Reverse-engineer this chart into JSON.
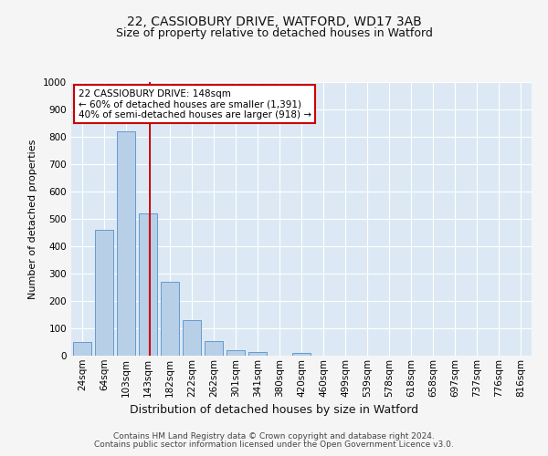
{
  "title": "22, CASSIOBURY DRIVE, WATFORD, WD17 3AB",
  "subtitle": "Size of property relative to detached houses in Watford",
  "xlabel": "Distribution of detached houses by size in Watford",
  "ylabel": "Number of detached properties",
  "footer_line1": "Contains HM Land Registry data © Crown copyright and database right 2024.",
  "footer_line2": "Contains public sector information licensed under the Open Government Licence v3.0.",
  "categories": [
    "24sqm",
    "64sqm",
    "103sqm",
    "143sqm",
    "182sqm",
    "222sqm",
    "262sqm",
    "301sqm",
    "341sqm",
    "380sqm",
    "420sqm",
    "460sqm",
    "499sqm",
    "539sqm",
    "578sqm",
    "618sqm",
    "658sqm",
    "697sqm",
    "737sqm",
    "776sqm",
    "816sqm"
  ],
  "bar_heights": [
    50,
    460,
    820,
    520,
    270,
    130,
    55,
    20,
    15,
    0,
    10,
    0,
    0,
    0,
    0,
    0,
    0,
    0,
    0,
    0,
    0
  ],
  "bar_color": "#b8cfe8",
  "bar_edge_color": "#6699cc",
  "ylim": [
    0,
    1000
  ],
  "yticks": [
    0,
    100,
    200,
    300,
    400,
    500,
    600,
    700,
    800,
    900,
    1000
  ],
  "vline_x_index": 3.07,
  "annotation_text_line1": "22 CASSIOBURY DRIVE: 148sqm",
  "annotation_text_line2": "← 60% of detached houses are smaller (1,391)",
  "annotation_text_line3": "40% of semi-detached houses are larger (918) →",
  "annotation_box_facecolor": "#ffffff",
  "annotation_box_edgecolor": "#cc0000",
  "vline_color": "#cc0000",
  "fig_facecolor": "#f5f5f5",
  "plot_facecolor": "#dce9f5",
  "grid_color": "#ffffff",
  "title_fontsize": 10,
  "subtitle_fontsize": 9,
  "ylabel_fontsize": 8,
  "xlabel_fontsize": 9,
  "tick_fontsize": 7.5,
  "footer_fontsize": 6.5
}
